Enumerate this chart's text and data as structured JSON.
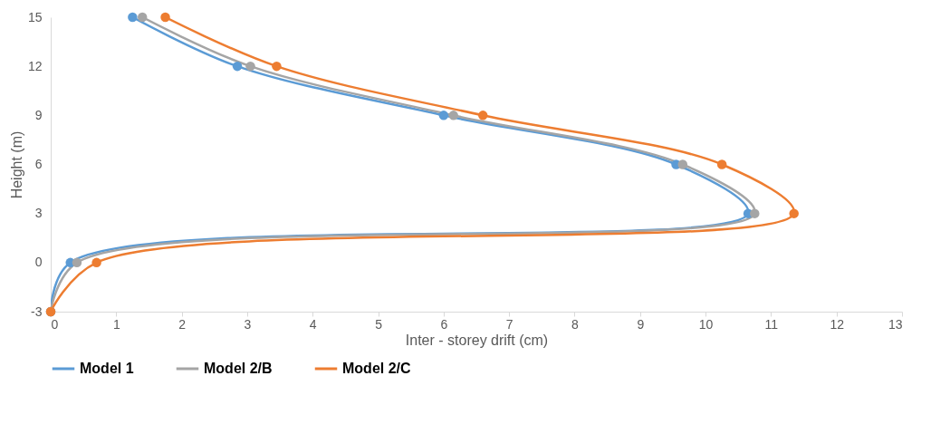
{
  "chart_data": {
    "type": "line",
    "xlabel": "Inter - storey drift (cm)",
    "ylabel": "Height (m)",
    "xlim": [
      0,
      13
    ],
    "xticks": [
      0,
      1,
      2,
      3,
      4,
      5,
      6,
      7,
      8,
      9,
      10,
      11,
      12,
      13
    ],
    "ylim": [
      -3,
      15
    ],
    "yticks": [
      -3,
      0,
      3,
      6,
      9,
      12,
      15
    ],
    "grid": false,
    "legend": "bottom",
    "marker": "circle",
    "line_style": "solid",
    "series": [
      {
        "name": "Model 1",
        "color": "#5b9bd5",
        "x": [
          0,
          0.3,
          10.65,
          9.55,
          6.0,
          2.85,
          1.25
        ],
        "values": [
          -3,
          0,
          3,
          6,
          9,
          12,
          15
        ]
      },
      {
        "name": "Model 2/B",
        "color": "#a5a5a5",
        "x": [
          0,
          0.4,
          10.75,
          9.65,
          6.15,
          3.05,
          1.4
        ],
        "values": [
          -3,
          0,
          3,
          6,
          9,
          12,
          15
        ]
      },
      {
        "name": "Model 2/C",
        "color": "#ed7d31",
        "x": [
          0,
          0.7,
          11.35,
          10.25,
          6.6,
          3.45,
          1.75
        ],
        "values": [
          -3,
          0,
          3,
          6,
          9,
          12,
          15
        ]
      }
    ]
  }
}
